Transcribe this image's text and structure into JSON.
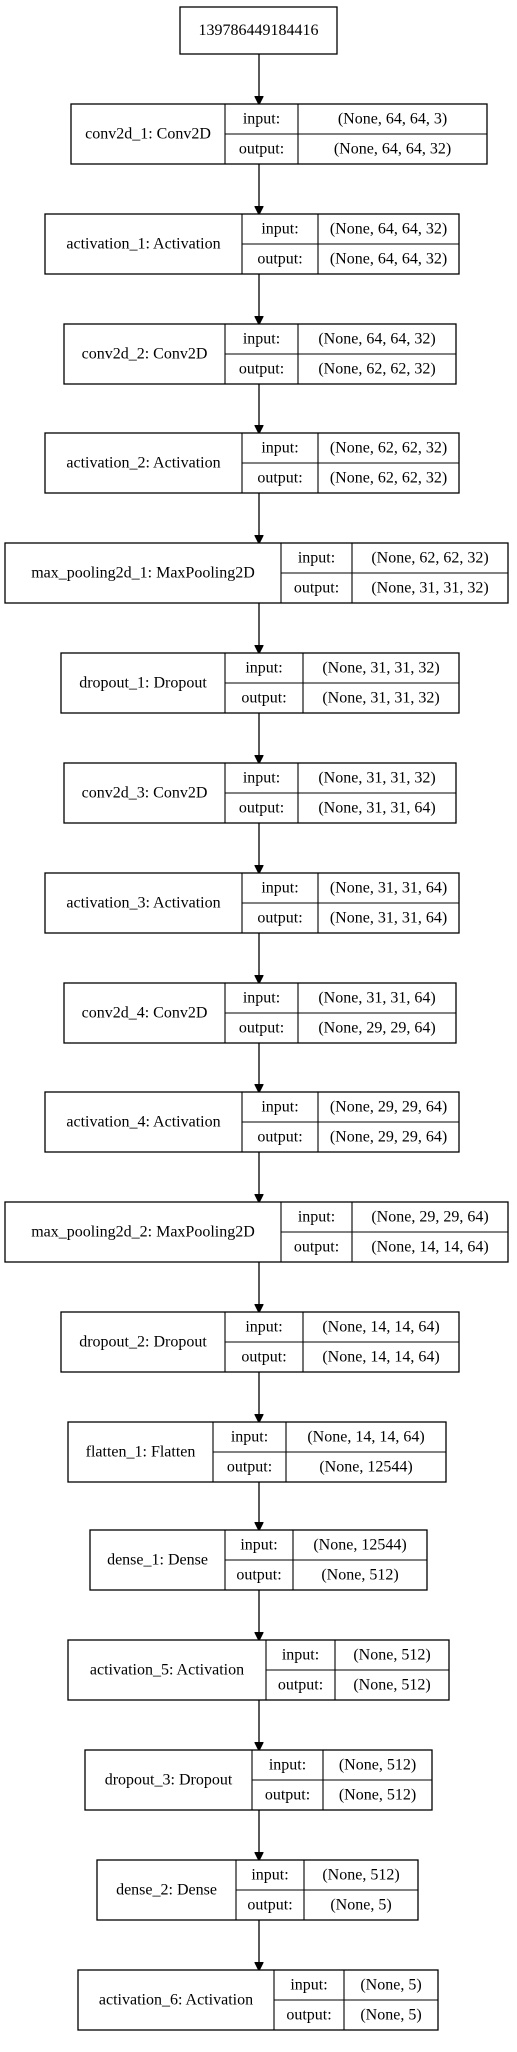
{
  "input_node": {
    "label": "139786449184416"
  },
  "port_labels": {
    "input": "input:",
    "output": "output:"
  },
  "layers": [
    {
      "name": "conv2d_1: Conv2D",
      "input": "(None, 64, 64, 3)",
      "output": "(None, 64, 64, 32)"
    },
    {
      "name": "activation_1: Activation",
      "input": "(None, 64, 64, 32)",
      "output": "(None, 64, 64, 32)"
    },
    {
      "name": "conv2d_2: Conv2D",
      "input": "(None, 64, 64, 32)",
      "output": "(None, 62, 62, 32)"
    },
    {
      "name": "activation_2: Activation",
      "input": "(None, 62, 62, 32)",
      "output": "(None, 62, 62, 32)"
    },
    {
      "name": "max_pooling2d_1: MaxPooling2D",
      "input": "(None, 62, 62, 32)",
      "output": "(None, 31, 31, 32)"
    },
    {
      "name": "dropout_1: Dropout",
      "input": "(None, 31, 31, 32)",
      "output": "(None, 31, 31, 32)"
    },
    {
      "name": "conv2d_3: Conv2D",
      "input": "(None, 31, 31, 32)",
      "output": "(None, 31, 31, 64)"
    },
    {
      "name": "activation_3: Activation",
      "input": "(None, 31, 31, 64)",
      "output": "(None, 31, 31, 64)"
    },
    {
      "name": "conv2d_4: Conv2D",
      "input": "(None, 31, 31, 64)",
      "output": "(None, 29, 29, 64)"
    },
    {
      "name": "activation_4: Activation",
      "input": "(None, 29, 29, 64)",
      "output": "(None, 29, 29, 64)"
    },
    {
      "name": "max_pooling2d_2: MaxPooling2D",
      "input": "(None, 29, 29, 64)",
      "output": "(None, 14, 14, 64)"
    },
    {
      "name": "dropout_2: Dropout",
      "input": "(None, 14, 14, 64)",
      "output": "(None, 14, 14, 64)"
    },
    {
      "name": "flatten_1: Flatten",
      "input": "(None, 14, 14, 64)",
      "output": "(None, 12544)"
    },
    {
      "name": "dense_1: Dense",
      "input": "(None, 12544)",
      "output": "(None, 512)"
    },
    {
      "name": "activation_5: Activation",
      "input": "(None, 512)",
      "output": "(None, 512)"
    },
    {
      "name": "dropout_3: Dropout",
      "input": "(None, 512)",
      "output": "(None, 512)"
    },
    {
      "name": "dense_2: Dense",
      "input": "(None, 512)",
      "output": "(None, 5)"
    },
    {
      "name": "activation_6: Activation",
      "input": "(None, 5)",
      "output": "(None, 5)"
    }
  ]
}
